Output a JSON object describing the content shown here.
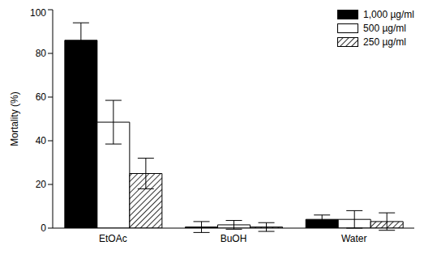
{
  "chart_data": {
    "type": "bar",
    "y_label": "Mortality (%)",
    "categories": [
      "EtOAc",
      "BuOH",
      "Water"
    ],
    "series": [
      {
        "name": "1,000 µg/ml",
        "color": "#000000",
        "values": [
          86,
          0.5,
          4
        ],
        "errors": [
          8,
          2.5,
          2
        ]
      },
      {
        "name": "500 µg/ml",
        "color": "#ffffff",
        "values": [
          48.5,
          1.5,
          4
        ],
        "errors": [
          10,
          2,
          4
        ]
      },
      {
        "name": "250 µg/ml",
        "color": "#000000",
        "line_style": "hatched",
        "values": [
          25,
          0.5,
          3
        ],
        "errors": [
          7,
          2,
          4
        ]
      }
    ],
    "ylim": [
      0,
      100
    ],
    "yticks": [
      0,
      20,
      40,
      60,
      80,
      100
    ],
    "grid": false,
    "legend": "upper right"
  }
}
